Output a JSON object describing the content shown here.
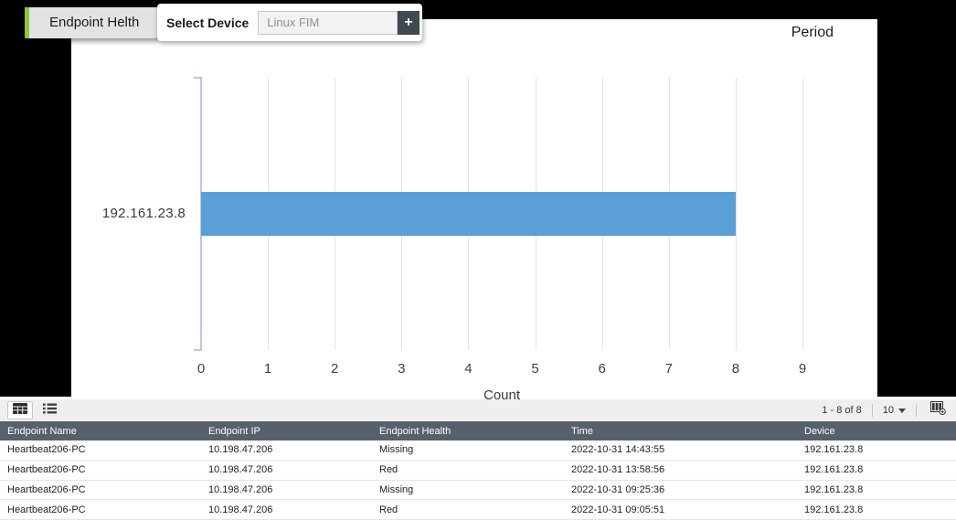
{
  "header": {
    "tab_label": "Endpoint Helth",
    "device_selector": {
      "label": "Select Device",
      "placeholder": "Linux FIM",
      "add_button_label": "+",
      "add_icon": "plus-icon"
    },
    "period_label": "Period"
  },
  "chart_data": {
    "type": "bar",
    "orientation": "horizontal",
    "title": "",
    "xlabel": "Count",
    "ylabel": "",
    "categories": [
      "192.161.23.8"
    ],
    "values": [
      8
    ],
    "x_ticks": [
      0,
      1,
      2,
      3,
      4,
      5,
      6,
      7,
      8,
      9
    ],
    "xlim": [
      0,
      9
    ],
    "grid": true,
    "legend_position": "none",
    "bar_color": "#5b9fd8"
  },
  "table": {
    "toolbar": {
      "view_icons": [
        "table-view-icon",
        "list-view-icon"
      ],
      "pagination_label": "1 - 8 of 8",
      "page_size_value": "10",
      "page_size_caret_icon": "caret-down-icon",
      "column_picker_icon": "column-picker-icon"
    },
    "columns": [
      "Endpoint Name",
      "Endpoint IP",
      "Endpoint Health",
      "Time",
      "Device"
    ],
    "rows": [
      [
        "Heartbeat206-PC",
        "10.198.47.206",
        "Missing",
        "2022-10-31 14:43:55",
        "192.161.23.8"
      ],
      [
        "Heartbeat206-PC",
        "10.198.47.206",
        "Red",
        "2022-10-31 13:58:56",
        "192.161.23.8"
      ],
      [
        "Heartbeat206-PC",
        "10.198.47.206",
        "Missing",
        "2022-10-31 09:25:36",
        "192.161.23.8"
      ],
      [
        "Heartbeat206-PC",
        "10.198.47.206",
        "Red",
        "2022-10-31 09:05:51",
        "192.161.23.8"
      ]
    ]
  },
  "colors": {
    "tab_accent_green": "#90c43e",
    "bar_blue": "#5b9fd8",
    "table_header_slate": "#57616b",
    "axis_stroke": "#a9b3d6",
    "background_black": "#000000"
  }
}
